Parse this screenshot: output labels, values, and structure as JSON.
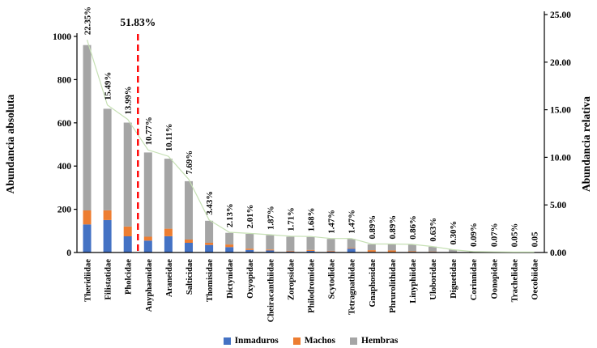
{
  "chart_data": {
    "type": "bar",
    "subtype": "pareto-stacked-bar-with-line",
    "title": "",
    "ylabel_left": "Abundancia absoluta",
    "ylabel_right": "Abundancia relativa",
    "ylim_left": [
      0,
      1000
    ],
    "yticks_left": [
      "0",
      "200",
      "400",
      "600",
      "800",
      "1000"
    ],
    "ylim_right": [
      0,
      25
    ],
    "yticks_right": [
      "0.00",
      "5.00",
      "10.00",
      "15.00",
      "20.00",
      "25.00"
    ],
    "grid": false,
    "legend_position": "bottom",
    "categories": [
      "Theridiidae",
      "Filistatidae",
      "Pholcidae",
      "Anyphaenidae",
      "Araneidae",
      "Salticidae",
      "Thomisidae",
      "Dictynidae",
      "Oxyopidae",
      "Cheiracanthiidae",
      "Zoropsidae",
      "Philodromidae",
      "Scytodidae",
      "Tetragnathidae",
      "Gnaphosidae",
      "Phrurolithidae",
      "Linyphiidae",
      "Uloboridae",
      "Diguetidae",
      "Corinnidae",
      "Oonopidae",
      "Trachelidae",
      "Oecobiidae"
    ],
    "series": [
      {
        "name": "Inmaduros",
        "color": "#4472C4",
        "values": [
          130,
          150,
          75,
          55,
          75,
          45,
          35,
          25,
          12,
          10,
          5,
          8,
          5,
          18,
          3,
          2,
          3,
          3,
          1,
          0,
          0,
          0,
          0
        ]
      },
      {
        "name": "Machos",
        "color": "#ED7D31",
        "values": [
          65,
          45,
          45,
          18,
          35,
          15,
          10,
          12,
          6,
          4,
          3,
          4,
          3,
          3,
          8,
          8,
          3,
          2,
          1,
          1,
          0,
          0,
          0
        ]
      },
      {
        "name": "Hembras",
        "color": "#A5A5A5",
        "values": [
          765,
          470,
          481,
          390,
          324,
          270,
          102,
          54,
          68,
          66,
          65,
          60,
          55,
          42,
          27,
          28,
          31,
          22,
          11,
          3,
          3,
          2,
          2
        ]
      }
    ],
    "line_series": {
      "name": "Abundancia relativa",
      "color": "#C6E0B4",
      "axis": "right",
      "values": [
        22.35,
        15.49,
        13.99,
        10.77,
        10.11,
        7.69,
        3.43,
        2.13,
        2.01,
        1.87,
        1.71,
        1.68,
        1.47,
        1.47,
        0.89,
        0.89,
        0.86,
        0.63,
        0.3,
        0.09,
        0.07,
        0.05,
        0.05
      ]
    },
    "bar_labels": [
      "22.35%",
      "15.49%",
      "13.99%",
      "10.77%",
      "10.11%",
      "7.69%",
      "3.43%",
      "2.13%",
      "2.01%",
      "1.87%",
      "1.71%",
      "1.68%",
      "1.47%",
      "1.47%",
      "0.89%",
      "0.89%",
      "0.86%",
      "0.63%",
      "0.30%",
      "0.09%",
      "0.07%",
      "0.05%",
      "0.05"
    ],
    "threshold_line": {
      "label": "51.83%",
      "color": "#FF0000",
      "style": "dashed",
      "after_category_index": 2
    }
  },
  "legend": {
    "items": [
      {
        "label": "Inmaduros",
        "color": "#4472C4"
      },
      {
        "label": "Machos",
        "color": "#ED7D31"
      },
      {
        "label": "Hembras",
        "color": "#A5A5A5"
      }
    ]
  }
}
